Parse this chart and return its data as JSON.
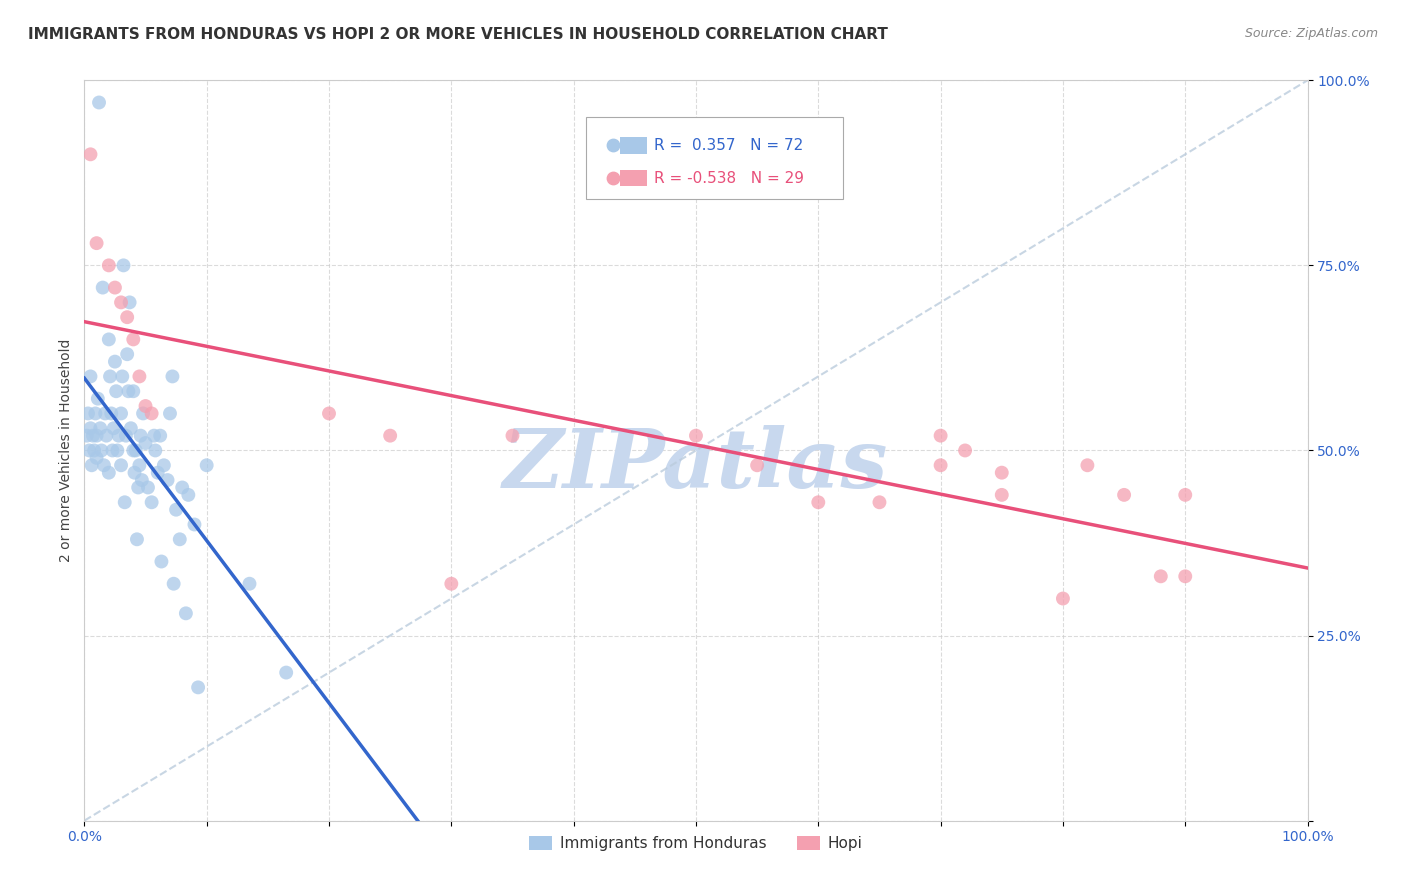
{
  "title": "IMMIGRANTS FROM HONDURAS VS HOPI 2 OR MORE VEHICLES IN HOUSEHOLD CORRELATION CHART",
  "source_text": "Source: ZipAtlas.com",
  "ylabel": "2 or more Vehicles in Household",
  "r_blue": 0.357,
  "n_blue": 72,
  "r_pink": -0.538,
  "n_pink": 29,
  "blue_color": "#a8c8e8",
  "pink_color": "#f4a0b0",
  "blue_line_color": "#3366cc",
  "pink_line_color": "#e8507a",
  "legend_labels": [
    "Immigrants from Honduras",
    "Hopi"
  ],
  "blue_points": [
    [
      0.2,
      52
    ],
    [
      0.3,
      55
    ],
    [
      0.4,
      50
    ],
    [
      0.5,
      53
    ],
    [
      0.5,
      60
    ],
    [
      0.6,
      48
    ],
    [
      0.7,
      52
    ],
    [
      0.8,
      50
    ],
    [
      0.9,
      55
    ],
    [
      1.0,
      52
    ],
    [
      1.0,
      49
    ],
    [
      1.1,
      57
    ],
    [
      1.2,
      97
    ],
    [
      1.3,
      53
    ],
    [
      1.4,
      50
    ],
    [
      1.5,
      72
    ],
    [
      1.6,
      48
    ],
    [
      1.7,
      55
    ],
    [
      1.8,
      52
    ],
    [
      2.0,
      65
    ],
    [
      2.0,
      47
    ],
    [
      2.1,
      60
    ],
    [
      2.2,
      55
    ],
    [
      2.3,
      50
    ],
    [
      2.4,
      53
    ],
    [
      2.5,
      62
    ],
    [
      2.6,
      58
    ],
    [
      2.7,
      50
    ],
    [
      2.8,
      52
    ],
    [
      3.0,
      55
    ],
    [
      3.0,
      48
    ],
    [
      3.1,
      60
    ],
    [
      3.2,
      75
    ],
    [
      3.3,
      43
    ],
    [
      3.4,
      52
    ],
    [
      3.5,
      63
    ],
    [
      3.6,
      58
    ],
    [
      3.7,
      70
    ],
    [
      3.8,
      53
    ],
    [
      4.0,
      58
    ],
    [
      4.0,
      50
    ],
    [
      4.1,
      47
    ],
    [
      4.2,
      50
    ],
    [
      4.3,
      38
    ],
    [
      4.4,
      45
    ],
    [
      4.5,
      48
    ],
    [
      4.6,
      52
    ],
    [
      4.7,
      46
    ],
    [
      4.8,
      55
    ],
    [
      5.0,
      51
    ],
    [
      5.2,
      45
    ],
    [
      5.5,
      43
    ],
    [
      5.7,
      52
    ],
    [
      5.8,
      50
    ],
    [
      6.0,
      47
    ],
    [
      6.2,
      52
    ],
    [
      6.3,
      35
    ],
    [
      6.5,
      48
    ],
    [
      6.8,
      46
    ],
    [
      7.0,
      55
    ],
    [
      7.2,
      60
    ],
    [
      7.3,
      32
    ],
    [
      7.5,
      42
    ],
    [
      7.8,
      38
    ],
    [
      8.0,
      45
    ],
    [
      8.3,
      28
    ],
    [
      8.5,
      44
    ],
    [
      9.0,
      40
    ],
    [
      9.3,
      18
    ],
    [
      10.0,
      48
    ],
    [
      13.5,
      32
    ],
    [
      16.5,
      20
    ]
  ],
  "pink_points": [
    [
      0.5,
      90
    ],
    [
      1.0,
      78
    ],
    [
      2.0,
      75
    ],
    [
      2.5,
      72
    ],
    [
      3.0,
      70
    ],
    [
      3.5,
      68
    ],
    [
      4.0,
      65
    ],
    [
      4.5,
      60
    ],
    [
      5.0,
      56
    ],
    [
      5.5,
      55
    ],
    [
      20.0,
      55
    ],
    [
      25.0,
      52
    ],
    [
      30.0,
      32
    ],
    [
      35.0,
      52
    ],
    [
      50.0,
      52
    ],
    [
      55.0,
      48
    ],
    [
      60.0,
      43
    ],
    [
      65.0,
      43
    ],
    [
      70.0,
      52
    ],
    [
      70.0,
      48
    ],
    [
      72.0,
      50
    ],
    [
      75.0,
      47
    ],
    [
      75.0,
      44
    ],
    [
      80.0,
      30
    ],
    [
      82.0,
      48
    ],
    [
      85.0,
      44
    ],
    [
      88.0,
      33
    ],
    [
      90.0,
      44
    ],
    [
      90.0,
      33
    ]
  ],
  "xlim": [
    0,
    100
  ],
  "ylim": [
    0,
    100
  ],
  "xticks": [
    0,
    10,
    20,
    30,
    40,
    50,
    60,
    70,
    80,
    90,
    100
  ],
  "yticks": [
    0,
    25,
    50,
    75,
    100
  ],
  "xticklabels": [
    "0.0%",
    "",
    "",
    "",
    "",
    "",
    "",
    "",
    "",
    "",
    "100.0%"
  ],
  "yticklabels": [
    "",
    "25.0%",
    "50.0%",
    "75.0%",
    "100.0%"
  ],
  "background_color": "#ffffff",
  "grid_color": "#cccccc",
  "watermark_text": "ZIPatlas",
  "watermark_color": "#c8d8ee"
}
